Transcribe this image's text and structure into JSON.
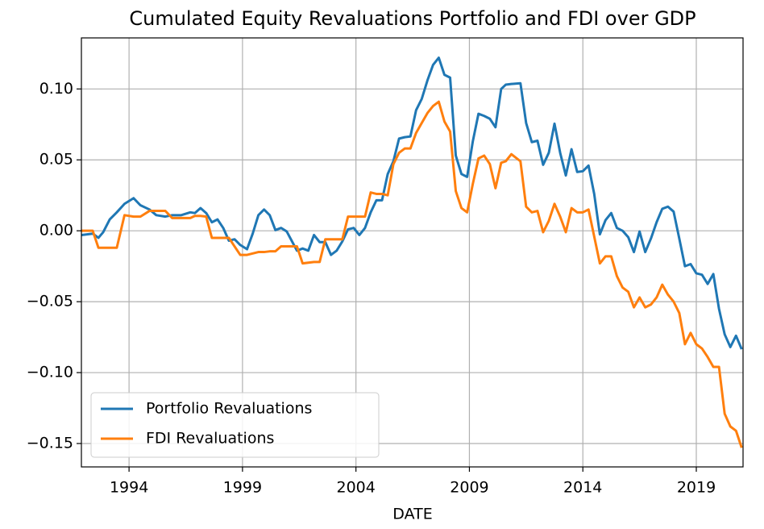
{
  "chart_data": {
    "type": "line",
    "title": "Cumulated Equity Revaluations Portfolio and FDI over GDP",
    "x_label": "DATE",
    "x": [
      1991.9,
      1992.4,
      1992.65,
      1992.86,
      1993.15,
      1993.46,
      1993.8,
      1994.2,
      1994.5,
      1994.9,
      1995.2,
      1995.6,
      1995.9,
      1996.3,
      1996.7,
      1996.9,
      1997.15,
      1997.4,
      1997.65,
      1997.9,
      1998.15,
      1998.4,
      1998.65,
      1998.9,
      1999.2,
      1999.45,
      1999.7,
      1999.95,
      2000.2,
      2000.45,
      2000.7,
      2000.95,
      2001.2,
      2001.4,
      2001.65,
      2001.9,
      2002.15,
      2002.4,
      2002.65,
      2002.9,
      2003.15,
      2003.4,
      2003.65,
      2003.9,
      2004.15,
      2004.4,
      2004.65,
      2004.9,
      2005.15,
      2005.4,
      2005.65,
      2005.9,
      2006.15,
      2006.4,
      2006.65,
      2006.9,
      2007.15,
      2007.4,
      2007.65,
      2007.9,
      2008.15,
      2008.4,
      2008.65,
      2008.9,
      2009.15,
      2009.4,
      2009.65,
      2009.9,
      2010.15,
      2010.4,
      2010.6,
      2010.85,
      2011.25,
      2011.5,
      2011.75,
      2012.0,
      2012.25,
      2012.5,
      2012.75,
      2013.0,
      2013.25,
      2013.5,
      2013.75,
      2014.0,
      2014.25,
      2014.5,
      2014.75,
      2015.0,
      2015.25,
      2015.5,
      2015.75,
      2016.0,
      2016.25,
      2016.5,
      2016.75,
      2017.0,
      2017.25,
      2017.5,
      2017.75,
      2018.0,
      2018.25,
      2018.5,
      2018.75,
      2019.0,
      2019.25,
      2019.5,
      2019.75,
      2020.0,
      2020.25,
      2020.5,
      2020.75,
      2021.0
    ],
    "series": [
      {
        "name": "Portfolio Revaluations",
        "color": "#1f77b4",
        "values": [
          -0.003,
          -0.002,
          -0.005,
          -0.001,
          0.008,
          0.013,
          0.019,
          0.023,
          0.018,
          0.015,
          0.011,
          0.01,
          0.011,
          0.011,
          0.013,
          0.0125,
          0.016,
          0.0125,
          0.006,
          0.008,
          0.002,
          -0.007,
          -0.006,
          -0.01,
          -0.013,
          -0.002,
          0.011,
          0.015,
          0.011,
          0.0005,
          0.002,
          -0.0005,
          -0.008,
          -0.014,
          -0.0125,
          -0.014,
          -0.003,
          -0.008,
          -0.008,
          -0.017,
          -0.014,
          -0.0075,
          0.001,
          0.002,
          -0.003,
          0.002,
          0.013,
          0.0215,
          0.0215,
          0.04,
          0.049,
          0.065,
          0.066,
          0.0665,
          0.085,
          0.093,
          0.106,
          0.117,
          0.122,
          0.11,
          0.108,
          0.053,
          0.04,
          0.038,
          0.063,
          0.0825,
          0.081,
          0.079,
          0.073,
          0.1,
          0.103,
          0.1035,
          0.104,
          0.076,
          0.0625,
          0.0635,
          0.0465,
          0.055,
          0.0755,
          0.055,
          0.039,
          0.0575,
          0.0415,
          0.042,
          0.046,
          0.026,
          -0.0025,
          0.0075,
          0.0125,
          0.002,
          0.0,
          -0.0045,
          -0.015,
          -0.0005,
          -0.015,
          -0.0055,
          0.006,
          0.0155,
          0.017,
          0.0135,
          -0.0055,
          -0.025,
          -0.0235,
          -0.03,
          -0.031,
          -0.0375,
          -0.0305,
          -0.055,
          -0.073,
          -0.082,
          -0.074,
          -0.0835
        ]
      },
      {
        "name": "FDI Revaluations",
        "color": "#ff7f0e",
        "values": [
          0.0,
          0.0,
          -0.012,
          -0.012,
          -0.012,
          -0.012,
          0.011,
          0.01,
          0.01,
          0.014,
          0.014,
          0.014,
          0.009,
          0.009,
          0.009,
          0.0105,
          0.0105,
          0.01,
          -0.005,
          -0.005,
          -0.005,
          -0.005,
          -0.011,
          -0.017,
          -0.017,
          -0.016,
          -0.015,
          -0.015,
          -0.0145,
          -0.0145,
          -0.011,
          -0.011,
          -0.011,
          -0.011,
          -0.023,
          -0.0225,
          -0.022,
          -0.022,
          -0.006,
          -0.006,
          -0.006,
          -0.006,
          0.01,
          0.01,
          0.01,
          0.01,
          0.027,
          0.026,
          0.026,
          0.025,
          0.047,
          0.055,
          0.058,
          0.058,
          0.069,
          0.076,
          0.083,
          0.088,
          0.091,
          0.077,
          0.07,
          0.028,
          0.016,
          0.013,
          0.033,
          0.051,
          0.053,
          0.047,
          0.03,
          0.048,
          0.049,
          0.054,
          0.049,
          0.017,
          0.013,
          0.014,
          -0.001,
          0.007,
          0.019,
          0.01,
          -0.001,
          0.016,
          0.013,
          0.013,
          0.015,
          -0.004,
          -0.023,
          -0.018,
          -0.018,
          -0.032,
          -0.04,
          -0.043,
          -0.054,
          -0.047,
          -0.054,
          -0.052,
          -0.047,
          -0.038,
          -0.045,
          -0.05,
          -0.058,
          -0.08,
          -0.072,
          -0.08,
          -0.083,
          -0.089,
          -0.096,
          -0.096,
          -0.129,
          -0.138,
          -0.141,
          -0.153
        ]
      }
    ],
    "xlim": [
      1991.9,
      2021.06
    ],
    "xticks": [
      1994,
      1999,
      2004,
      2009,
      2014,
      2019
    ],
    "ylim": [
      -0.1665,
      0.136
    ],
    "yticks": [
      {
        "value": -0.15,
        "label": "−0.15"
      },
      {
        "value": -0.1,
        "label": "−0.10"
      },
      {
        "value": -0.05,
        "label": "−0.05"
      },
      {
        "value": 0,
        "label": "0.00"
      },
      {
        "value": 0.05,
        "label": "0.05"
      },
      {
        "value": 0.1,
        "label": "0.10"
      }
    ],
    "grid": true,
    "legend": "lower left"
  }
}
